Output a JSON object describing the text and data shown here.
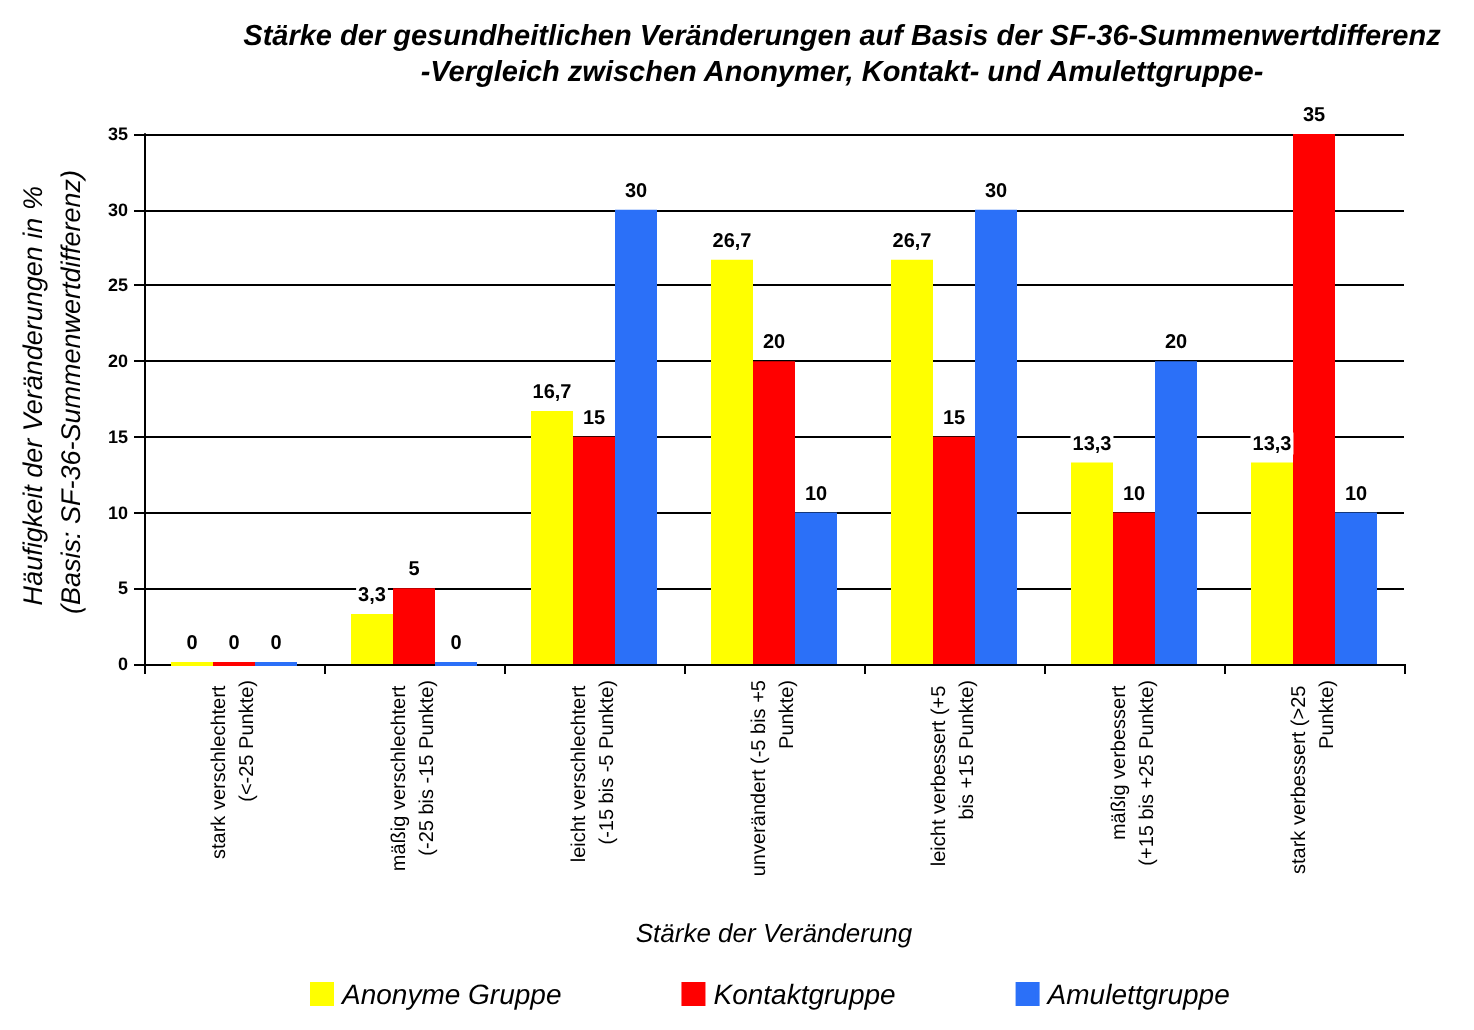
{
  "chart_data": {
    "type": "bar",
    "title": "Stärke der gesundheitlichen Veränderungen auf Basis der SF-36-Summenwertdifferenz",
    "subtitle": "-Vergleich zwischen Anonymer, Kontakt- und Amulettgruppe-",
    "xlabel": "Stärke der Veränderung",
    "ylabel": "Häufigkeit der Veränderungen in % (Basis: SF-36-Summenwertdifferenz)",
    "categories": [
      "stark verschlechtert (<-25 Punkte)",
      "mäßig verschlechtert (-25 bis -15 Punkte)",
      "leicht verschlechtert (-15 bis -5 Punkte)",
      "unverändert (-5 bis +5 Punkte)",
      "leicht verbessert (+5 bis +15 Punkte)",
      "mäßig verbessert (+15 bis +25 Punkte)",
      "stark verbessert (>25 Punkte)"
    ],
    "series": [
      {
        "name": "Anonyme Gruppe",
        "color": "#ffff00",
        "values": [
          0,
          3.3,
          16.7,
          26.7,
          26.7,
          13.3,
          13.3
        ],
        "value_labels": [
          "0",
          "3,3",
          "16,7",
          "26,7",
          "26,7",
          "13,3",
          "13,3"
        ]
      },
      {
        "name": "Kontaktgruppe",
        "color": "#ff0000",
        "values": [
          0,
          5,
          15,
          20,
          15,
          10,
          35
        ],
        "value_labels": [
          "0",
          "5",
          "15",
          "20",
          "15",
          "10",
          "35"
        ]
      },
      {
        "name": "Amulettgruppe",
        "color": "#2b70f8",
        "values": [
          0,
          0,
          30,
          10,
          30,
          20,
          10
        ],
        "value_labels": [
          "0",
          "0",
          "30",
          "10",
          "30",
          "20",
          "10"
        ]
      }
    ],
    "ylim": [
      0,
      35
    ],
    "yticks": [
      0,
      5,
      10,
      15,
      20,
      25,
      30,
      35
    ],
    "grid": "y",
    "legend": "bottom"
  }
}
